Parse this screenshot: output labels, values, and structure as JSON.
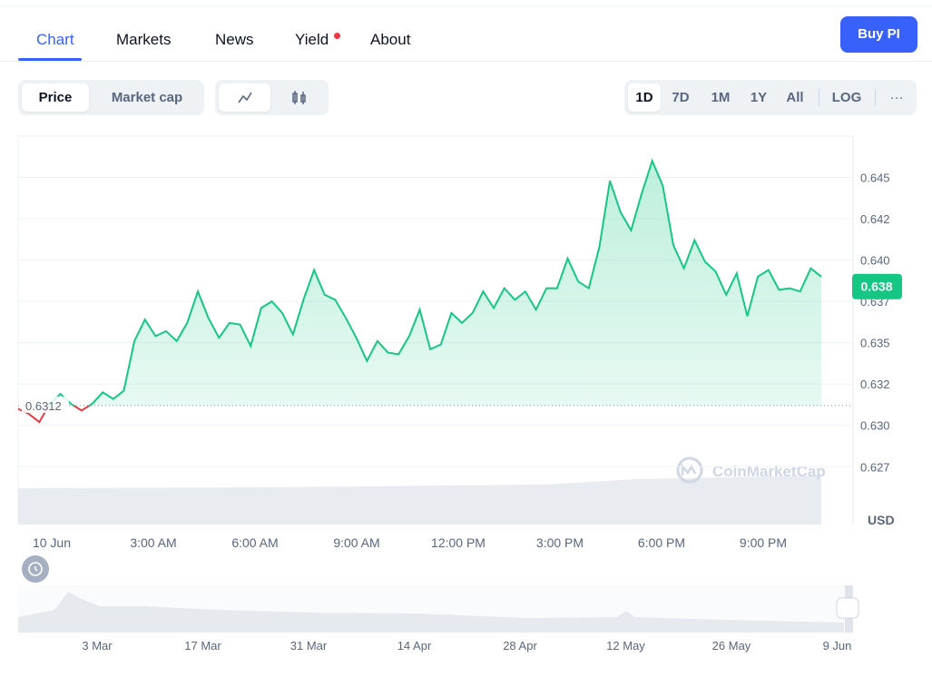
{
  "nav": {
    "tabs": [
      "Chart",
      "Markets",
      "News",
      "Yield",
      "About"
    ],
    "button": "Buy PI"
  },
  "toolbar": {
    "view": [
      "Price",
      "Market cap"
    ],
    "ranges": [
      "1D",
      "7D",
      "1M",
      "1Y",
      "All",
      "LOG"
    ],
    "more": "···"
  },
  "chart_data": {
    "type": "area",
    "values": [
      0.631,
      0.6307,
      0.6302,
      0.6313,
      0.6319,
      0.6313,
      0.6309,
      0.6313,
      0.632,
      0.6316,
      0.6321,
      0.6351,
      0.6364,
      0.6354,
      0.6357,
      0.6351,
      0.6362,
      0.6381,
      0.6365,
      0.6353,
      0.6362,
      0.6361,
      0.6348,
      0.6371,
      0.6375,
      0.6368,
      0.6355,
      0.6376,
      0.6394,
      0.6379,
      0.6376,
      0.6365,
      0.6353,
      0.6339,
      0.6351,
      0.6344,
      0.6343,
      0.6354,
      0.637,
      0.6346,
      0.6349,
      0.6368,
      0.6362,
      0.6368,
      0.6381,
      0.6371,
      0.6383,
      0.6376,
      0.6381,
      0.637,
      0.6383,
      0.6383,
      0.6401,
      0.6387,
      0.6383,
      0.6408,
      0.6448,
      0.6429,
      0.6418,
      0.644,
      0.646,
      0.6445,
      0.6409,
      0.6395,
      0.6412,
      0.6399,
      0.6393,
      0.6379,
      0.6392,
      0.6366,
      0.639,
      0.6394,
      0.6382,
      0.6383,
      0.6381,
      0.6395,
      0.639
    ],
    "x_labels": [
      "10 Jun",
      "3:00 AM",
      "6:00 AM",
      "9:00 AM",
      "12:00 PM",
      "3:00 PM",
      "6:00 PM",
      "9:00 PM"
    ],
    "ylim": [
      0.624,
      0.6475
    ],
    "yticks": [
      0.645,
      {
        "value": 0.6425,
        "label": "0.642"
      },
      {
        "value": 0.64,
        "label": "0.640"
      },
      {
        "value": 0.6375,
        "label": "0.637"
      },
      0.635,
      {
        "value": 0.6325,
        "label": "0.632"
      },
      {
        "value": 0.63,
        "label": "0.630"
      },
      {
        "value": 0.6275,
        "label": "0.627"
      }
    ],
    "grid": true,
    "open_price": 0.6312,
    "current_price": {
      "value": 0.6384,
      "label": "0.638"
    },
    "up_color": "#16c784",
    "down_color": "#ea3943",
    "currency": "USD",
    "watermark": "CoinMarketCap",
    "navigator_labels": [
      "3 Mar",
      "17 Mar",
      "31 Mar",
      "14 Apr",
      "28 Apr",
      "12 May",
      "26 May",
      "9 Jun"
    ]
  }
}
